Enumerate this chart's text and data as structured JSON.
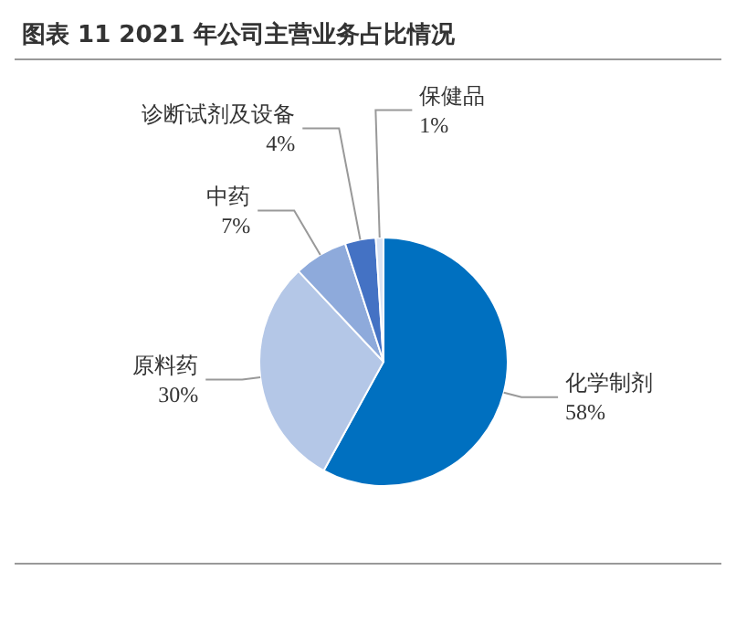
{
  "chart_data": {
    "type": "pie",
    "title": "图表 11 2021 年公司主营业务占比情况",
    "categories": [
      "化学制剂",
      "原料药",
      "中药",
      "诊断试剂及设备",
      "保健品"
    ],
    "values": [
      58,
      30,
      7,
      4,
      1
    ],
    "value_labels": [
      "58%",
      "30%",
      "7%",
      "4%",
      "1%"
    ],
    "colors": [
      "#0070c0",
      "#b4c7e7",
      "#8eaadb",
      "#4472c4",
      "#dae3f3"
    ]
  }
}
